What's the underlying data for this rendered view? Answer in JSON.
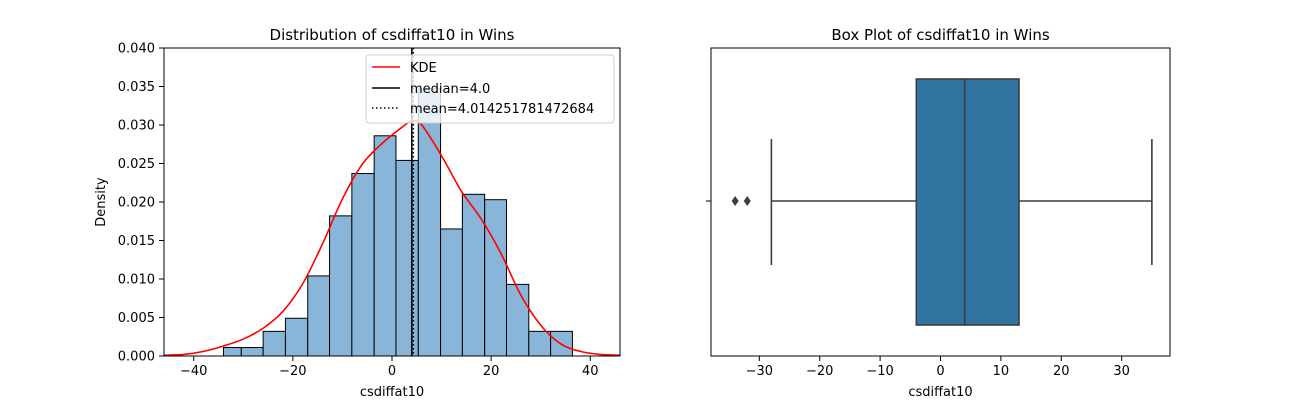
{
  "chart_data": [
    {
      "type": "histogram",
      "title": "Distribution of csdiffat10 in Wins",
      "xlabel": "csdiffat10",
      "ylabel": "Density",
      "xlim": [
        -46,
        46
      ],
      "ylim": [
        0,
        0.04
      ],
      "xticks": [
        -40,
        -20,
        0,
        20,
        40
      ],
      "yticks": [
        0.0,
        0.005,
        0.01,
        0.015,
        0.02,
        0.025,
        0.03,
        0.035,
        0.04
      ],
      "ytick_labels": [
        "0.000",
        "0.005",
        "0.010",
        "0.015",
        "0.020",
        "0.025",
        "0.030",
        "0.035",
        "0.040"
      ],
      "bins": [
        {
          "x0": -34.0,
          "x1": -30.4,
          "density": 0.0011
        },
        {
          "x0": -30.4,
          "x1": -26.0,
          "density": 0.0011
        },
        {
          "x0": -26.0,
          "x1": -21.5,
          "density": 0.0032
        },
        {
          "x0": -21.5,
          "x1": -17.0,
          "density": 0.0049
        },
        {
          "x0": -17.0,
          "x1": -12.6,
          "density": 0.0104
        },
        {
          "x0": -12.6,
          "x1": -8.1,
          "density": 0.0182
        },
        {
          "x0": -8.1,
          "x1": -3.6,
          "density": 0.0237
        },
        {
          "x0": -3.6,
          "x1": 0.8,
          "density": 0.0286
        },
        {
          "x0": 0.8,
          "x1": 5.3,
          "density": 0.0254
        },
        {
          "x0": 5.3,
          "x1": 9.8,
          "density": 0.0347
        },
        {
          "x0": 9.8,
          "x1": 14.2,
          "density": 0.0165
        },
        {
          "x0": 14.2,
          "x1": 18.7,
          "density": 0.021
        },
        {
          "x0": 18.7,
          "x1": 23.1,
          "density": 0.0203
        },
        {
          "x0": 23.1,
          "x1": 27.6,
          "density": 0.0093
        },
        {
          "x0": 27.6,
          "x1": 32.0,
          "density": 0.0032
        },
        {
          "x0": 32.0,
          "x1": 36.4,
          "density": 0.0032
        }
      ],
      "kde": {
        "x": [
          -46,
          -42,
          -38,
          -34,
          -30,
          -26,
          -22,
          -18,
          -14,
          -10,
          -6,
          -2,
          2,
          4,
          6,
          10,
          14,
          18,
          22,
          26,
          30,
          34,
          38,
          42,
          46
        ],
        "y": [
          0.0001,
          0.0002,
          0.0006,
          0.0013,
          0.0022,
          0.0036,
          0.0058,
          0.0094,
          0.0146,
          0.0204,
          0.0249,
          0.0276,
          0.0297,
          0.0305,
          0.03,
          0.026,
          0.0214,
          0.0178,
          0.0133,
          0.0079,
          0.004,
          0.0016,
          0.0006,
          0.0002,
          0.0001
        ]
      },
      "median": 4.0,
      "mean": 4.014251781472684,
      "legend": {
        "placement": "upper right",
        "entries": [
          "KDE",
          "median=4.0",
          "mean=4.014251781472684"
        ]
      },
      "colors": {
        "bar": "#89b6d8",
        "kde": "#ff0000",
        "median": "#000000",
        "mean": "#000000"
      }
    },
    {
      "type": "box",
      "title": "Box Plot of csdiffat10 in Wins",
      "xlabel": "csdiffat10",
      "xlim": [
        -38,
        38
      ],
      "xticks": [
        -30,
        -20,
        -10,
        0,
        10,
        20,
        30
      ],
      "box": {
        "whisker_low": -28,
        "q1": -4,
        "median": 4,
        "q3": 13,
        "whisker_high": 35
      },
      "outliers": [
        -34,
        -32
      ],
      "colors": {
        "box": "#3274a1",
        "line": "#3d3d3d"
      }
    }
  ]
}
